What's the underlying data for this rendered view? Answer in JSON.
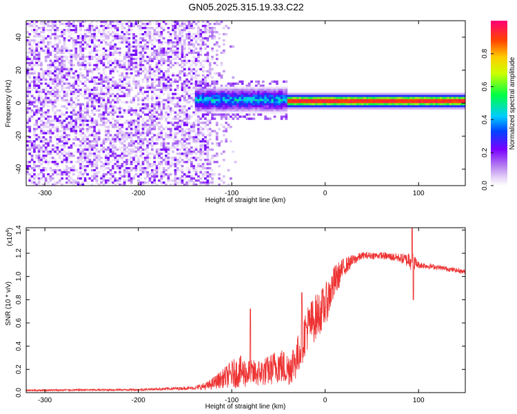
{
  "title": "GN05.2025.315.19.33.C22",
  "chart_data": [
    {
      "type": "heatmap",
      "name": "spectrogram",
      "xlabel": "Height of straight line (km)",
      "ylabel": "Frequency (Hz)",
      "xlim": [
        -320,
        150
      ],
      "ylim": [
        -50,
        50
      ],
      "x_ticks": [
        -300,
        -200,
        -100,
        0,
        100
      ],
      "x_tick_labels": [
        "-300",
        "-200",
        "-100",
        "0",
        "100"
      ],
      "y_ticks": [
        -40,
        -20,
        0,
        20,
        40
      ],
      "y_tick_labels": [
        "-40",
        "-20",
        "0",
        "20",
        "40"
      ],
      "features": {
        "noise_region": {
          "x": [
            -320,
            -125
          ],
          "amplitude": [
            0.0,
            0.25
          ]
        },
        "transition_region": {
          "x": [
            -125,
            -95
          ],
          "amplitude": [
            0.05,
            0.3
          ]
        },
        "scattered_signal": {
          "x": [
            -140,
            -40
          ],
          "freq_center": 2,
          "freq_halfwidth": 8,
          "amplitude": [
            0.3,
            0.55
          ]
        },
        "carrier_line": {
          "x": [
            -40,
            150
          ],
          "freq_center": 1,
          "amplitude": 0.95
        }
      },
      "colorbar": {
        "label": "Normalized spectral amplitude",
        "range": [
          0.0,
          1.0
        ],
        "ticks": [
          0.0,
          0.2,
          0.4,
          0.6,
          0.8
        ],
        "tick_labels": [
          "0.0",
          "0.2",
          "0.4",
          "0.6",
          "0.8"
        ]
      }
    },
    {
      "type": "line",
      "name": "snr",
      "xlabel": "Height of straight line (km)",
      "ylabel": "SNR (10 * v/v)",
      "y_multiplier": "(x10",
      "y_multiplier_exp": "4",
      "y_multiplier_close": ")",
      "xlim": [
        -320,
        150
      ],
      "ylim": [
        0.0,
        1.42
      ],
      "x_ticks": [
        -300,
        -200,
        -100,
        0,
        100
      ],
      "x_tick_labels": [
        "-300",
        "-200",
        "-100",
        "0",
        "100"
      ],
      "y_ticks": [
        0.0,
        0.2,
        0.4,
        0.6,
        0.8,
        1.0,
        1.2,
        1.4
      ],
      "y_tick_labels": [
        "0.0",
        "0.2",
        "0.4",
        "0.6",
        "0.8",
        "1.0",
        "1.2",
        "1.4"
      ],
      "color": "#ee3333",
      "envelope": {
        "x": [
          -320,
          -200,
          -140,
          -125,
          -110,
          -100,
          -90,
          -80,
          -70,
          -60,
          -50,
          -40,
          -30,
          -20,
          -10,
          0,
          10,
          20,
          30,
          40,
          60,
          80,
          88,
          92,
          96,
          100,
          120,
          150
        ],
        "mean": [
          0.02,
          0.025,
          0.04,
          0.06,
          0.12,
          0.16,
          0.18,
          0.16,
          0.17,
          0.19,
          0.24,
          0.2,
          0.3,
          0.55,
          0.65,
          0.75,
          0.95,
          1.08,
          1.14,
          1.18,
          1.18,
          1.16,
          1.14,
          1.17,
          1.12,
          1.1,
          1.08,
          1.04
        ],
        "spread": [
          0.008,
          0.008,
          0.015,
          0.04,
          0.08,
          0.12,
          0.14,
          0.12,
          0.12,
          0.13,
          0.16,
          0.15,
          0.18,
          0.2,
          0.2,
          0.18,
          0.15,
          0.08,
          0.05,
          0.03,
          0.03,
          0.04,
          0.06,
          0.12,
          0.06,
          0.03,
          0.02,
          0.02
        ]
      },
      "peaks": [
        {
          "x": -80,
          "y": 0.72
        },
        {
          "x": -25,
          "y": 0.86
        },
        {
          "x": 93,
          "y": 1.42
        },
        {
          "x": 94.5,
          "y": 0.8
        }
      ]
    }
  ]
}
